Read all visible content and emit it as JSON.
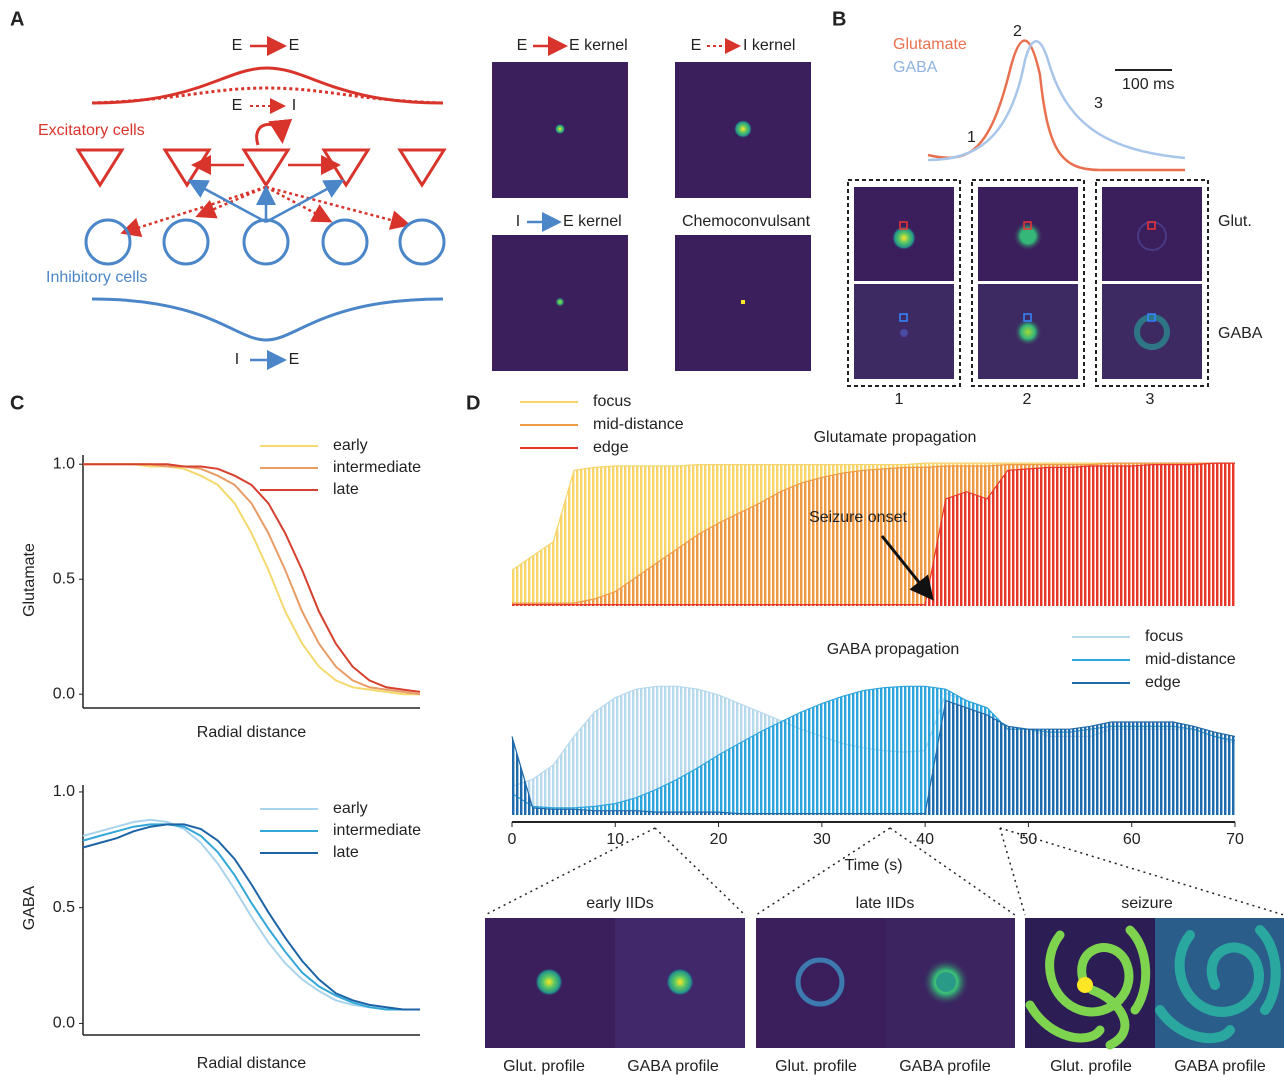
{
  "panel_labels": [
    "A",
    "B",
    "C",
    "D"
  ],
  "panel_a": {
    "top_arrow": {
      "from": "E",
      "to": "E"
    },
    "mid_arrow": {
      "from": "E",
      "to": "I"
    },
    "excitatory": "Excitatory cells",
    "inhibitory": "Inhibitory cells",
    "bottom_arrow": {
      "from": "I",
      "to": "E"
    },
    "kernels": [
      {
        "from": "E",
        "to": "E kernel"
      },
      {
        "from": "E",
        "to": "I kernel"
      },
      {
        "from": "I",
        "to": "E kernel"
      },
      {
        "title": "Chemoconvulsant"
      }
    ]
  },
  "panel_b": {
    "legend": [
      "Glutamate",
      "GABA"
    ],
    "scale": "100 ms",
    "points": [
      "1",
      "2",
      "3"
    ],
    "rows": [
      "Glut.",
      "GABA"
    ],
    "columns": [
      "1",
      "2",
      "3"
    ]
  },
  "panel_d_insets": [
    {
      "title": "early IIDs",
      "labels": [
        "Glut. profile",
        "GABA profile"
      ]
    },
    {
      "title": "late IIDs",
      "labels": [
        "Glut. profile",
        "GABA profile"
      ]
    },
    {
      "title": "seizure",
      "labels": [
        "Glut. profile",
        "GABA profile"
      ]
    }
  ],
  "chart_data": [
    {
      "type": "line",
      "y_label": "Glutamate",
      "x_label": "Radial distance",
      "x": [
        0,
        0.05,
        0.1,
        0.15,
        0.2,
        0.25,
        0.3,
        0.35,
        0.4,
        0.45,
        0.5,
        0.55,
        0.6,
        0.65,
        0.7,
        0.75,
        0.8,
        0.85,
        0.9,
        0.95,
        1
      ],
      "xlim": [
        0,
        1
      ],
      "ylim": [
        -0.06,
        1.04
      ],
      "yticks": [
        {
          "value": 0,
          "label": "0.0"
        },
        {
          "value": 0.5,
          "label": "0.5"
        },
        {
          "value": 1,
          "label": "1.0"
        }
      ],
      "series": [
        {
          "name": "early",
          "color": "#f5d96c",
          "values": [
            1,
            1,
            1,
            1,
            0.99,
            0.99,
            0.98,
            0.95,
            0.91,
            0.83,
            0.7,
            0.54,
            0.36,
            0.22,
            0.12,
            0.06,
            0.03,
            0.02,
            0.01,
            0,
            0
          ]
        },
        {
          "name": "intermediate",
          "color": "#e89c66",
          "values": [
            1,
            1,
            1,
            1,
            1,
            0.99,
            0.99,
            0.98,
            0.95,
            0.91,
            0.83,
            0.7,
            0.54,
            0.36,
            0.22,
            0.12,
            0.06,
            0.03,
            0.02,
            0.01,
            0
          ]
        },
        {
          "name": "late",
          "color": "#d6402e",
          "values": [
            1,
            1,
            1,
            1,
            1,
            1,
            0.99,
            0.99,
            0.98,
            0.95,
            0.91,
            0.83,
            0.7,
            0.54,
            0.36,
            0.22,
            0.12,
            0.06,
            0.03,
            0.02,
            0.01
          ]
        }
      ]
    },
    {
      "type": "line",
      "y_label": "GABA",
      "x_label": "Radial distance",
      "x": [
        0,
        0.05,
        0.1,
        0.15,
        0.2,
        0.25,
        0.3,
        0.35,
        0.4,
        0.45,
        0.5,
        0.55,
        0.6,
        0.65,
        0.7,
        0.75,
        0.8,
        0.85,
        0.9,
        0.95,
        1
      ],
      "xlim": [
        0,
        1
      ],
      "ylim": [
        -0.05,
        1.03
      ],
      "yticks": [
        {
          "value": 0,
          "label": "0.0"
        },
        {
          "value": 0.5,
          "label": "0.5"
        },
        {
          "value": 1,
          "label": "1.0"
        }
      ],
      "series": [
        {
          "name": "early",
          "color": "#a9d4ec",
          "values": [
            0.81,
            0.83,
            0.85,
            0.87,
            0.88,
            0.87,
            0.84,
            0.78,
            0.69,
            0.58,
            0.46,
            0.35,
            0.26,
            0.19,
            0.14,
            0.1,
            0.08,
            0.07,
            0.06,
            0.06,
            0.06
          ]
        },
        {
          "name": "intermediate",
          "color": "#33a7d8",
          "values": [
            0.79,
            0.81,
            0.83,
            0.85,
            0.86,
            0.86,
            0.85,
            0.81,
            0.74,
            0.64,
            0.52,
            0.41,
            0.31,
            0.22,
            0.16,
            0.12,
            0.09,
            0.07,
            0.06,
            0.06,
            0.06
          ]
        },
        {
          "name": "late",
          "color": "#1d64a6",
          "values": [
            0.76,
            0.78,
            0.8,
            0.83,
            0.85,
            0.86,
            0.86,
            0.84,
            0.79,
            0.71,
            0.6,
            0.48,
            0.37,
            0.27,
            0.19,
            0.13,
            0.1,
            0.08,
            0.07,
            0.06,
            0.06
          ]
        }
      ]
    },
    {
      "type": "area",
      "title": "Glutamate propagation",
      "annotation": "Seizure onset",
      "x": [
        0,
        2,
        4,
        6,
        8,
        10,
        12,
        14,
        16,
        18,
        20,
        22,
        24,
        26,
        28,
        30,
        32,
        34,
        36,
        38,
        40,
        42,
        44,
        46,
        48,
        50,
        52,
        54,
        56,
        58,
        60,
        62,
        64,
        66,
        68,
        70
      ],
      "xlim": [
        0,
        70
      ],
      "ylim": [
        0,
        1.05
      ],
      "series": [
        {
          "name": "focus",
          "color": "#f7d56a",
          "values": [
            0.25,
            0.35,
            0.45,
            0.95,
            0.97,
            0.98,
            0.98,
            0.98,
            0.98,
            0.99,
            0.99,
            0.99,
            0.99,
            0.99,
            0.99,
            0.99,
            0.99,
            0.99,
            0.99,
            0.99,
            1,
            1,
            1,
            1,
            1,
            1,
            1,
            1,
            1,
            1,
            1,
            1,
            1,
            1,
            1,
            1
          ]
        },
        {
          "name": "mid-distance",
          "color": "#ef9a45",
          "values": [
            0.02,
            0.02,
            0.02,
            0.02,
            0.05,
            0.1,
            0.2,
            0.3,
            0.4,
            0.5,
            0.58,
            0.65,
            0.72,
            0.8,
            0.86,
            0.9,
            0.93,
            0.95,
            0.96,
            0.97,
            0.97,
            0.98,
            0.98,
            0.98,
            0.99,
            0.99,
            0.99,
            0.99,
            0.99,
            1,
            1,
            1,
            1,
            1,
            1,
            1
          ]
        },
        {
          "name": "edge",
          "color": "#e8362a",
          "values": [
            0.01,
            0.01,
            0.01,
            0.01,
            0.01,
            0.01,
            0.01,
            0.01,
            0.01,
            0.01,
            0.01,
            0.01,
            0.01,
            0.01,
            0.01,
            0.01,
            0.01,
            0.01,
            0.01,
            0.01,
            0.01,
            0.75,
            0.8,
            0.75,
            0.95,
            0.96,
            0.97,
            0.97,
            0.98,
            0.98,
            0.98,
            0.99,
            0.99,
            0.99,
            1,
            1
          ]
        }
      ]
    },
    {
      "type": "area",
      "title": "GABA propagation",
      "x_label": "Time (s)",
      "x": [
        0,
        2,
        4,
        6,
        8,
        10,
        12,
        14,
        16,
        18,
        20,
        22,
        24,
        26,
        28,
        30,
        32,
        34,
        36,
        38,
        40,
        42,
        44,
        46,
        48,
        50,
        52,
        54,
        56,
        58,
        60,
        62,
        64,
        66,
        68,
        70
      ],
      "xlim": [
        0,
        70
      ],
      "ylim": [
        0,
        1
      ],
      "xticks": [
        0,
        10,
        20,
        30,
        40,
        50,
        60,
        70
      ],
      "series": [
        {
          "name": "focus",
          "color": "#b7d9ee",
          "values": [
            0.2,
            0.25,
            0.35,
            0.55,
            0.72,
            0.82,
            0.88,
            0.9,
            0.9,
            0.88,
            0.84,
            0.78,
            0.72,
            0.66,
            0.6,
            0.55,
            0.5,
            0.47,
            0.45,
            0.44,
            0.45,
            0.85,
            0.8,
            0.75,
            0.6,
            0.6,
            0.55,
            0.55,
            0.55,
            0.6,
            0.6,
            0.6,
            0.6,
            0.6,
            0.55,
            0.5
          ]
        },
        {
          "name": "mid-distance",
          "color": "#2ea5dc",
          "values": [
            0.15,
            0.06,
            0.05,
            0.05,
            0.06,
            0.08,
            0.12,
            0.18,
            0.25,
            0.33,
            0.42,
            0.5,
            0.58,
            0.65,
            0.72,
            0.78,
            0.83,
            0.87,
            0.89,
            0.9,
            0.9,
            0.88,
            0.8,
            0.75,
            0.6,
            0.6,
            0.58,
            0.58,
            0.6,
            0.62,
            0.62,
            0.62,
            0.62,
            0.6,
            0.55,
            0.52
          ]
        },
        {
          "name": "edge",
          "color": "#1f6aaa",
          "values": [
            0.55,
            0.05,
            0.04,
            0.04,
            0.03,
            0.03,
            0.03,
            0.02,
            0.02,
            0.02,
            0.02,
            0.01,
            0.01,
            0.01,
            0.01,
            0.01,
            0.01,
            0.01,
            0.01,
            0.01,
            0.01,
            0.8,
            0.75,
            0.7,
            0.62,
            0.6,
            0.6,
            0.6,
            0.62,
            0.65,
            0.65,
            0.65,
            0.65,
            0.62,
            0.58,
            0.55
          ]
        }
      ]
    }
  ]
}
